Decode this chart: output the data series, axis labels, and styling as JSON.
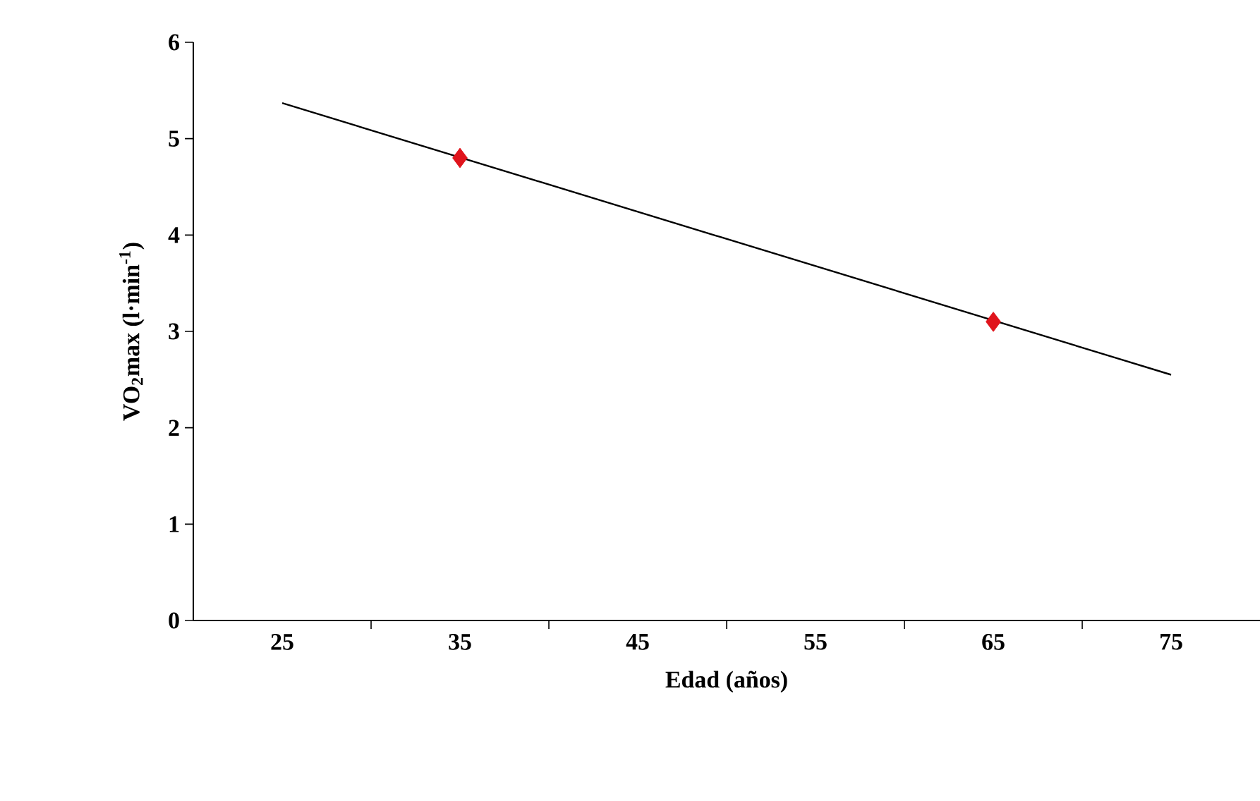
{
  "chart_data": {
    "type": "scatter",
    "xlabel": "Edad (años)",
    "ylabel": "VO$_{2}$max (l·min$^{-1}$)",
    "xlim": [
      20,
      80
    ],
    "ylim": [
      0,
      6
    ],
    "xticks": [
      {
        "value": 25,
        "label": "25"
      },
      {
        "value": 30,
        "label": null
      },
      {
        "value": 35,
        "label": "35"
      },
      {
        "value": 40,
        "label": null
      },
      {
        "value": 45,
        "label": "45"
      },
      {
        "value": 50,
        "label": null
      },
      {
        "value": 55,
        "label": "55"
      },
      {
        "value": 60,
        "label": null
      },
      {
        "value": 65,
        "label": "65"
      },
      {
        "value": 70,
        "label": null
      },
      {
        "value": 75,
        "label": "75"
      }
    ],
    "yticks": [
      0,
      1,
      2,
      3,
      4,
      5,
      6
    ],
    "series": [
      {
        "type": "line",
        "color": "#000000",
        "x": [
          25,
          75
        ],
        "values": [
          5.37,
          2.55
        ],
        "marker": "none"
      },
      {
        "color": "#e0141c",
        "x": [
          35,
          65
        ],
        "values": [
          4.8,
          3.1
        ],
        "marker": "diamond"
      }
    ]
  }
}
